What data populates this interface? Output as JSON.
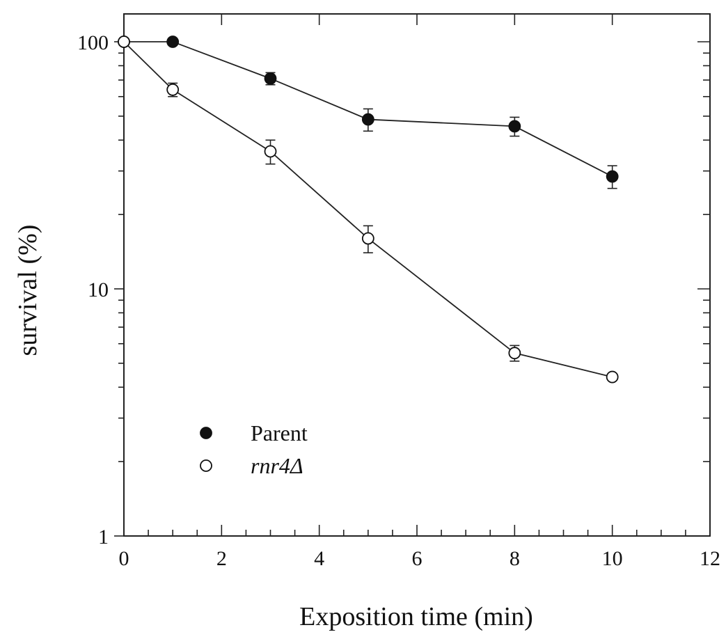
{
  "chart_data": {
    "type": "line",
    "xlabel": "Exposition time  (min)",
    "ylabel": "survival (%)",
    "xlim": [
      0,
      12
    ],
    "ylim": [
      1,
      100
    ],
    "y_scale": "log",
    "x_ticks": [
      0,
      2,
      4,
      6,
      8,
      10,
      12
    ],
    "x_tick_labels": [
      "0",
      "2",
      "4",
      "6",
      "8",
      "10",
      "12"
    ],
    "y_ticks": [
      1,
      10,
      100
    ],
    "y_tick_labels": [
      "1",
      "10",
      "100"
    ],
    "grid": false,
    "legend_position": "bottom-left",
    "series": [
      {
        "name": "Parent",
        "marker": "filled-circle",
        "x": [
          0,
          1,
          3,
          5,
          8,
          10
        ],
        "y": [
          100,
          100,
          71,
          48.5,
          45.5,
          28.5
        ],
        "err": [
          0,
          0,
          4,
          5,
          4,
          3
        ]
      },
      {
        "name": "rnr4Δ",
        "marker": "open-circle",
        "x": [
          0,
          1,
          3,
          5,
          8,
          10
        ],
        "y": [
          100,
          64,
          36,
          16,
          5.5,
          4.4
        ],
        "err": [
          0,
          4,
          4,
          2,
          0.4,
          0
        ]
      }
    ]
  }
}
